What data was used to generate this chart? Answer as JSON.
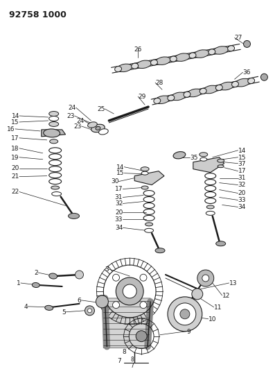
{
  "title": "92758 1000",
  "bg": "#ffffff",
  "lc": "#1a1a1a",
  "fig_w": 3.99,
  "fig_h": 5.33,
  "dpi": 100
}
